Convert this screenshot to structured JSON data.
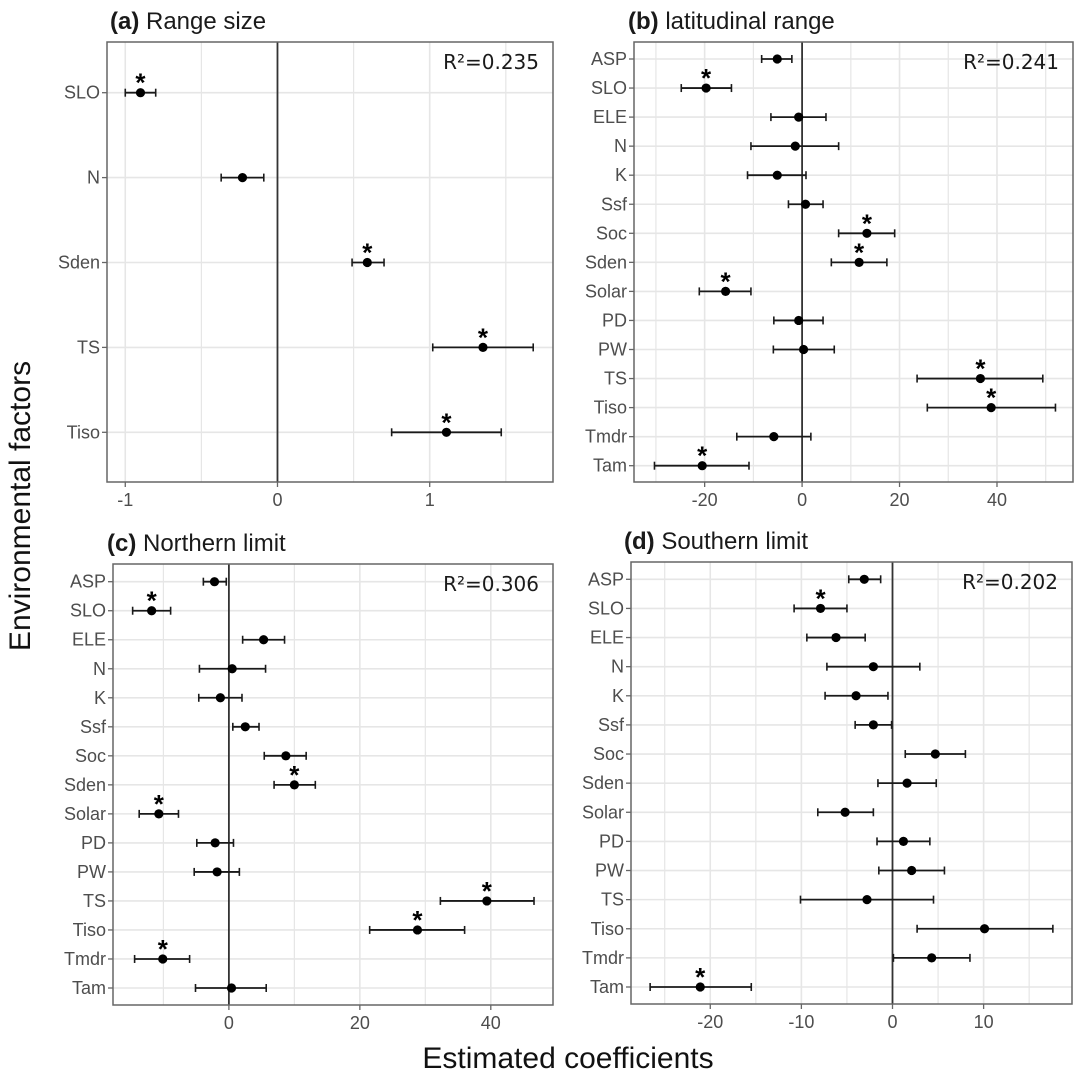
{
  "figure": {
    "ylabel": "Environmental factors",
    "xlabel": "Estimated coefficients",
    "colors": {
      "point": "#000000",
      "errorbar": "#1a1a1a",
      "zero_line": "#333333",
      "grid": "#e6e6e6",
      "frame": "#666666",
      "background": "#ffffff"
    }
  },
  "chart_data": [
    {
      "type": "scatter",
      "subtype": "coefficient-plot-with-error-bars",
      "panel_tag": "(a)",
      "title": "Range size",
      "r2_label": "R²=0.235",
      "xlabel": "Estimated coefficients",
      "ylabel": "Environmental factors",
      "xlim": [
        -1.12,
        1.81
      ],
      "xticks": [
        -1,
        0,
        1
      ],
      "xtick_labels": [
        "-1",
        "0",
        "1"
      ],
      "minor_gridlines": [
        -0.5,
        0.5,
        1.5
      ],
      "grid": true,
      "reference_line_x": 0,
      "categories": [
        "SLO",
        "N",
        "Sden",
        "TS",
        "Tiso"
      ],
      "estimate": [
        -0.9,
        -0.23,
        0.59,
        1.35,
        1.11
      ],
      "ci_low": [
        -1.0,
        -0.37,
        0.49,
        1.02,
        0.75
      ],
      "ci_high": [
        -0.8,
        -0.09,
        0.7,
        1.68,
        1.47
      ],
      "significant": [
        true,
        false,
        true,
        true,
        true
      ]
    },
    {
      "type": "scatter",
      "subtype": "coefficient-plot-with-error-bars",
      "panel_tag": "(b)",
      "title": "latitudinal range",
      "r2_label": "R²=0.241",
      "xlabel": "Estimated coefficients",
      "ylabel": "Environmental factors",
      "xlim": [
        -34.5,
        55.6
      ],
      "xticks": [
        -20,
        0,
        20,
        40
      ],
      "xtick_labels": [
        "-20",
        "0",
        "20",
        "40"
      ],
      "minor_gridlines": [
        -30,
        -10,
        10,
        30,
        50
      ],
      "grid": true,
      "reference_line_x": 0,
      "categories": [
        "ASP",
        "SLO",
        "ELE",
        "N",
        "K",
        "Ssf",
        "Soc",
        "Sden",
        "Solar",
        "PD",
        "PW",
        "TS",
        "Tiso",
        "Tmdr",
        "Tam"
      ],
      "estimate": [
        -5.1,
        -19.7,
        -0.7,
        -1.4,
        -5.1,
        0.7,
        13.3,
        11.7,
        -15.7,
        -0.7,
        0.3,
        36.6,
        38.8,
        -5.8,
        -20.5
      ],
      "ci_low": [
        -8.3,
        -24.8,
        -6.4,
        -10.5,
        -11.2,
        -2.8,
        7.5,
        6.0,
        -21.1,
        -5.8,
        -5.9,
        23.6,
        25.7,
        -13.4,
        -30.3
      ],
      "ci_high": [
        -2.1,
        -14.5,
        4.9,
        7.5,
        0.8,
        4.3,
        19.0,
        17.4,
        -10.5,
        4.3,
        6.6,
        49.4,
        52.0,
        1.8,
        -10.9
      ],
      "significant": [
        false,
        true,
        false,
        false,
        false,
        false,
        true,
        true,
        true,
        false,
        false,
        true,
        true,
        false,
        true
      ]
    },
    {
      "type": "scatter",
      "subtype": "coefficient-plot-with-error-bars",
      "panel_tag": "(c)",
      "title": "Northern limit",
      "r2_label": "R²=0.306",
      "xlabel": "Estimated coefficients",
      "ylabel": "Environmental factors",
      "xlim": [
        -17.7,
        49.5
      ],
      "xticks": [
        0,
        20,
        40
      ],
      "xtick_labels": [
        "0",
        "20",
        "40"
      ],
      "minor_gridlines": [
        -10,
        10,
        30
      ],
      "grid": true,
      "reference_line_x": 0,
      "categories": [
        "ASP",
        "SLO",
        "ELE",
        "N",
        "K",
        "Ssf",
        "Soc",
        "Sden",
        "Solar",
        "PD",
        "PW",
        "TS",
        "Tiso",
        "Tmdr",
        "Tam"
      ],
      "estimate": [
        -2.2,
        -11.8,
        5.3,
        0.5,
        -1.3,
        2.5,
        8.7,
        10.0,
        -10.7,
        -2.1,
        -1.8,
        39.4,
        28.8,
        -10.1,
        0.4
      ],
      "ci_low": [
        -3.9,
        -14.7,
        2.1,
        -4.5,
        -4.6,
        0.6,
        5.4,
        6.9,
        -13.7,
        -4.9,
        -5.3,
        32.3,
        21.5,
        -14.4,
        -5.1
      ],
      "ci_high": [
        -0.4,
        -8.9,
        8.5,
        5.6,
        2.0,
        4.6,
        11.8,
        13.2,
        -7.7,
        0.7,
        1.6,
        46.6,
        36.0,
        -6.0,
        5.7
      ],
      "significant": [
        false,
        true,
        false,
        false,
        false,
        false,
        false,
        true,
        true,
        false,
        false,
        true,
        true,
        true,
        false
      ]
    },
    {
      "type": "scatter",
      "subtype": "coefficient-plot-with-error-bars",
      "panel_tag": "(d)",
      "title": "Southern limit",
      "r2_label": "R²=0.202",
      "xlabel": "Estimated coefficients",
      "ylabel": "Environmental factors",
      "xlim": [
        -28.7,
        19.7
      ],
      "xticks": [
        -20,
        -10,
        0,
        10
      ],
      "xtick_labels": [
        "-20",
        "-10",
        "0",
        "10"
      ],
      "minor_gridlines": [
        -25,
        -15,
        -5,
        5,
        15
      ],
      "grid": true,
      "reference_line_x": 0,
      "categories": [
        "ASP",
        "SLO",
        "ELE",
        "N",
        "K",
        "Ssf",
        "Soc",
        "Sden",
        "Solar",
        "PD",
        "PW",
        "TS",
        "Tiso",
        "Tmdr",
        "Tam"
      ],
      "estimate": [
        -3.1,
        -7.9,
        -6.2,
        -2.1,
        -4.0,
        -2.1,
        4.7,
        1.6,
        -5.2,
        1.2,
        2.1,
        -2.8,
        10.1,
        4.3,
        -21.1
      ],
      "ci_low": [
        -4.8,
        -10.8,
        -9.4,
        -7.2,
        -7.4,
        -4.1,
        1.4,
        -1.6,
        -8.2,
        -1.7,
        -1.5,
        -10.1,
        2.7,
        0.1,
        -26.6
      ],
      "ci_high": [
        -1.3,
        -5.0,
        -3.0,
        3.0,
        -0.5,
        -0.1,
        8.0,
        4.8,
        -2.1,
        4.1,
        5.7,
        4.5,
        17.6,
        8.5,
        -15.5
      ],
      "significant": [
        false,
        true,
        false,
        false,
        false,
        false,
        false,
        false,
        false,
        false,
        false,
        false,
        false,
        false,
        true
      ]
    }
  ]
}
